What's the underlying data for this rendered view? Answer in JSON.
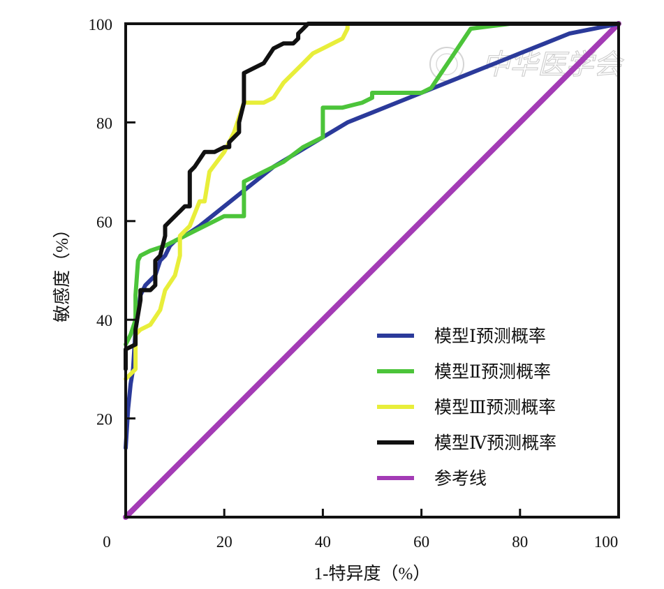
{
  "chart_data": {
    "type": "line",
    "title": "",
    "xlabel": "1-特异度（%）",
    "ylabel": "敏感度（%）",
    "xlim": [
      0,
      100
    ],
    "ylim": [
      0,
      100
    ],
    "x_ticks": [
      "0",
      "20",
      "40",
      "60",
      "80",
      "100"
    ],
    "y_ticks": [
      "20",
      "40",
      "60",
      "80",
      "100"
    ],
    "grid": false,
    "legend_position": "bottom-right",
    "watermark": "中华医学会",
    "series": [
      {
        "name": "模型Ⅰ预测概率",
        "color": "#2b3a9a",
        "points": [
          [
            0,
            14
          ],
          [
            0.5,
            22
          ],
          [
            1,
            27
          ],
          [
            1.5,
            30
          ],
          [
            2,
            38
          ],
          [
            3,
            45
          ],
          [
            4,
            47
          ],
          [
            5,
            48
          ],
          [
            6,
            49
          ],
          [
            7,
            52
          ],
          [
            8,
            53
          ],
          [
            9,
            55
          ],
          [
            10,
            56
          ],
          [
            12,
            57
          ],
          [
            15,
            59
          ],
          [
            20,
            63
          ],
          [
            25,
            67
          ],
          [
            30,
            71
          ],
          [
            35,
            74
          ],
          [
            40,
            77
          ],
          [
            45,
            80
          ],
          [
            50,
            82
          ],
          [
            55,
            84
          ],
          [
            60,
            86
          ],
          [
            65,
            88
          ],
          [
            70,
            90
          ],
          [
            75,
            92
          ],
          [
            80,
            94
          ],
          [
            85,
            96
          ],
          [
            90,
            98
          ],
          [
            95,
            99
          ],
          [
            100,
            100
          ]
        ]
      },
      {
        "name": "模型Ⅱ预测概率",
        "color": "#4cc43a",
        "points": [
          [
            0,
            35
          ],
          [
            1,
            37
          ],
          [
            2,
            40
          ],
          [
            2,
            45
          ],
          [
            2.5,
            52
          ],
          [
            3,
            53
          ],
          [
            5,
            54
          ],
          [
            8,
            55
          ],
          [
            10,
            56
          ],
          [
            14,
            58
          ],
          [
            18,
            60
          ],
          [
            20,
            61
          ],
          [
            24,
            61
          ],
          [
            24,
            68
          ],
          [
            28,
            70
          ],
          [
            32,
            72
          ],
          [
            36,
            75
          ],
          [
            40,
            77
          ],
          [
            40,
            83
          ],
          [
            44,
            83
          ],
          [
            48,
            84
          ],
          [
            50,
            85
          ],
          [
            50,
            86
          ],
          [
            55,
            86
          ],
          [
            58,
            86
          ],
          [
            60,
            86
          ],
          [
            62,
            87
          ],
          [
            64,
            90
          ],
          [
            66,
            93
          ],
          [
            68,
            96
          ],
          [
            70,
            99
          ],
          [
            74,
            99.5
          ],
          [
            78,
            100
          ],
          [
            100,
            100
          ]
        ]
      },
      {
        "name": "模型Ⅲ预测概率",
        "color": "#e8ee3a",
        "points": [
          [
            0,
            28
          ],
          [
            1,
            29
          ],
          [
            2,
            30
          ],
          [
            2,
            37
          ],
          [
            3,
            38
          ],
          [
            5,
            39
          ],
          [
            7,
            42
          ],
          [
            8,
            46
          ],
          [
            10,
            49
          ],
          [
            11,
            53
          ],
          [
            11,
            57
          ],
          [
            12,
            58
          ],
          [
            13,
            59
          ],
          [
            15,
            64
          ],
          [
            16,
            64
          ],
          [
            17,
            70
          ],
          [
            20,
            74
          ],
          [
            22,
            78
          ],
          [
            24,
            84
          ],
          [
            28,
            84
          ],
          [
            30,
            85
          ],
          [
            32,
            88
          ],
          [
            34,
            90
          ],
          [
            36,
            92
          ],
          [
            38,
            94
          ],
          [
            40,
            95
          ],
          [
            42,
            96
          ],
          [
            44,
            97
          ],
          [
            45,
            99
          ],
          [
            45,
            100
          ],
          [
            100,
            100
          ]
        ]
      },
      {
        "name": "模型Ⅳ预测概率",
        "color": "#111111",
        "points": [
          [
            0,
            30
          ],
          [
            0,
            34
          ],
          [
            2,
            35
          ],
          [
            2,
            38
          ],
          [
            3,
            44
          ],
          [
            3,
            46
          ],
          [
            5,
            46
          ],
          [
            6,
            47
          ],
          [
            6,
            52
          ],
          [
            7,
            53
          ],
          [
            7.5,
            55
          ],
          [
            8,
            57
          ],
          [
            8,
            59
          ],
          [
            9,
            60
          ],
          [
            10,
            61
          ],
          [
            11,
            62
          ],
          [
            12,
            63
          ],
          [
            13,
            63
          ],
          [
            13,
            70
          ],
          [
            14,
            71
          ],
          [
            16,
            74
          ],
          [
            18,
            74
          ],
          [
            20,
            75
          ],
          [
            21,
            75
          ],
          [
            21,
            76
          ],
          [
            23,
            78
          ],
          [
            23,
            80
          ],
          [
            24,
            84
          ],
          [
            24,
            90
          ],
          [
            26,
            91
          ],
          [
            28,
            92
          ],
          [
            30,
            95
          ],
          [
            32,
            96
          ],
          [
            34,
            96
          ],
          [
            35,
            97
          ],
          [
            35,
            98
          ],
          [
            36,
            99
          ],
          [
            37,
            100
          ],
          [
            100,
            100
          ]
        ]
      },
      {
        "name": "参考线",
        "color": "#a33bb5",
        "points": [
          [
            0,
            0
          ],
          [
            100,
            100
          ]
        ]
      }
    ]
  }
}
